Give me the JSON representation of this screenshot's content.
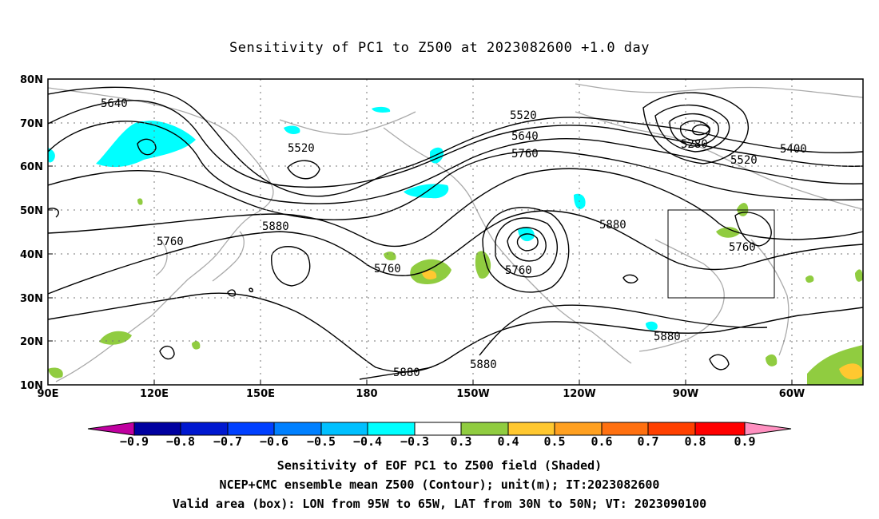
{
  "title": "Sensitivity of PC1 to Z500 at 2023082600 +1.0 day",
  "map": {
    "lat_labels": [
      "80N",
      "70N",
      "60N",
      "50N",
      "40N",
      "30N",
      "20N",
      "10N"
    ],
    "lon_labels": [
      "90E",
      "120E",
      "150E",
      "180",
      "150W",
      "120W",
      "90W",
      "60W"
    ],
    "contour_labels": [
      {
        "text": "5640"
      },
      {
        "text": "5520"
      },
      {
        "text": "5520"
      },
      {
        "text": "5640"
      },
      {
        "text": "5760"
      },
      {
        "text": "5280"
      },
      {
        "text": "5400"
      },
      {
        "text": "5520"
      },
      {
        "text": "5880"
      },
      {
        "text": "5760"
      },
      {
        "text": "5760"
      },
      {
        "text": "5760"
      },
      {
        "text": "5880"
      },
      {
        "text": "5760"
      },
      {
        "text": "5880"
      },
      {
        "text": "5880"
      },
      {
        "text": "5880"
      }
    ],
    "valid_box": {
      "lon_from": "95W",
      "lon_to": "65W",
      "lat_from": "30N",
      "lat_to": "50N"
    }
  },
  "colorbar": {
    "labels": [
      "−0.9",
      "−0.8",
      "−0.7",
      "−0.6",
      "−0.5",
      "−0.4",
      "−0.3",
      "0.3",
      "0.4",
      "0.5",
      "0.6",
      "0.7",
      "0.8",
      "0.9"
    ],
    "colors": [
      "#c000a0",
      "#0000a0",
      "#0018d0",
      "#0040ff",
      "#0080ff",
      "#00c0ff",
      "#00ffff",
      "#ffffff",
      "#90cc40",
      "#ffc830",
      "#ffa020",
      "#ff7010",
      "#ff4000",
      "#ff0000",
      "#ff90c0"
    ]
  },
  "captions": [
    "Sensitivity of EOF PC1 to Z500 field (Shaded)",
    "NCEP+CMC ensemble mean Z500 (Contour); unit(m); IT:2023082600",
    "Valid area (box): LON from 95W to 65W, LAT from 30N to 50N; VT: 2023090100"
  ]
}
